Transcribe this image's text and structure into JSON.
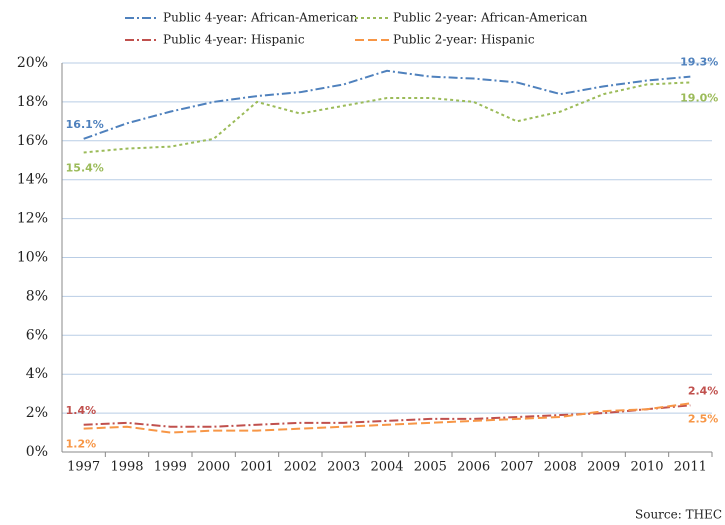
{
  "chart_data": {
    "type": "line",
    "categories": [
      "1997",
      "1998",
      "1999",
      "2000",
      "2001",
      "2002",
      "2003",
      "2004",
      "2005",
      "2006",
      "2007",
      "2008",
      "2009",
      "2010",
      "2011"
    ],
    "series": [
      {
        "name": "Public 4-year: African-American",
        "color": "#4f81bd",
        "dash": "9,3,2,3",
        "values": [
          16.1,
          16.9,
          17.5,
          18.0,
          18.3,
          18.5,
          18.9,
          19.6,
          19.3,
          19.2,
          19.0,
          18.4,
          18.8,
          19.1,
          19.3
        ],
        "value_labels": [
          "16.1%",
          null,
          null,
          null,
          null,
          null,
          null,
          null,
          null,
          null,
          null,
          null,
          null,
          null,
          "19.3%"
        ]
      },
      {
        "name": "Public 2-year: African-American",
        "color": "#9bbb59",
        "dash": "3,3",
        "values": [
          15.4,
          15.6,
          15.7,
          16.1,
          18.0,
          17.4,
          17.8,
          18.2,
          18.2,
          18.0,
          17.0,
          17.5,
          18.4,
          18.9,
          19.0
        ],
        "value_labels": [
          "15.4%",
          null,
          null,
          null,
          null,
          null,
          null,
          null,
          null,
          null,
          null,
          null,
          null,
          null,
          "19.0%"
        ]
      },
      {
        "name": "Public 4-year: Hispanic",
        "color": "#c0504d",
        "dash": "9,3,2,3",
        "values": [
          1.4,
          1.5,
          1.3,
          1.3,
          1.4,
          1.5,
          1.5,
          1.6,
          1.7,
          1.7,
          1.8,
          1.9,
          2.0,
          2.2,
          2.4
        ],
        "value_labels": [
          "1.4%",
          null,
          null,
          null,
          null,
          null,
          null,
          null,
          null,
          null,
          null,
          null,
          null,
          null,
          "2.4%"
        ]
      },
      {
        "name": "Public 2-year: Hispanic",
        "color": "#f79646",
        "dash": "9,4",
        "values": [
          1.2,
          1.3,
          1.0,
          1.1,
          1.1,
          1.2,
          1.3,
          1.4,
          1.5,
          1.6,
          1.7,
          1.8,
          2.1,
          2.2,
          2.5
        ],
        "value_labels": [
          "1.2%",
          null,
          null,
          null,
          null,
          null,
          null,
          null,
          null,
          null,
          null,
          null,
          null,
          null,
          "2.5%"
        ]
      }
    ],
    "ylim": [
      0,
      20
    ],
    "yticks": [
      {
        "value": 0,
        "label": "0%"
      },
      {
        "value": 2,
        "label": "2%"
      },
      {
        "value": 4,
        "label": "4%"
      },
      {
        "value": 6,
        "label": "6%"
      },
      {
        "value": 8,
        "label": "8%"
      },
      {
        "value": 10,
        "label": "10%"
      },
      {
        "value": 12,
        "label": "12%"
      },
      {
        "value": 14,
        "label": "14%"
      },
      {
        "value": 16,
        "label": "16%"
      },
      {
        "value": 18,
        "label": "18%"
      },
      {
        "value": 20,
        "label": "20%"
      }
    ],
    "grid": true,
    "source": "Source: THEC"
  }
}
